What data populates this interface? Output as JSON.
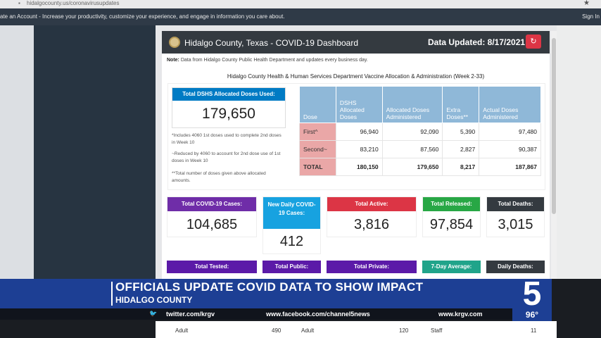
{
  "browser": {
    "url": "hidalgocounty.us/coronavirusupdates"
  },
  "navbar": {
    "message": "ate an Account - Increase your productivity, customize your experience, and engage in information you care about.",
    "signin": "Sign In"
  },
  "dashboard": {
    "title": "Hidalgo County, Texas - COVID-19 Dashboard",
    "updated": "Data Updated: 8/17/2021",
    "note_label": "Note:",
    "note_text": "Data from Hidalgo County Public Health Department and updates every business day.",
    "vaccine_title": "Hidalgo County Health & Human Services Department Vaccine Allocation & Administration (Week 2-33)",
    "dshs_label": "Total DSHS Allocated Doses Used:",
    "dshs_value": "179,650",
    "foot1": "*Includes 4060 1st doses used to complete 2nd doses in Week 10",
    "foot2": "~Reduced by 4060 to account for 2nd dose use of 1st doses in Week 10",
    "foot3": "**Total number of doses given above allocated amounts.",
    "table": {
      "headers": [
        "Dose",
        "DSHS Allocated Doses",
        "Allocated Doses Administered",
        "Extra Doses**",
        "Actual Doses Administered"
      ],
      "rows": [
        [
          "First^",
          "96,940",
          "92,090",
          "5,390",
          "97,480"
        ],
        [
          "Second~",
          "83,210",
          "87,560",
          "2,827",
          "90,387"
        ],
        [
          "TOTAL",
          "180,150",
          "179,650",
          "8,217",
          "187,867"
        ]
      ]
    },
    "stats": {
      "cases_label": "Total COVID-19 Cases:",
      "cases": "104,685",
      "daily_label": "New Daily COVID-19 Cases:",
      "daily": "412",
      "active_label": "Total Active:",
      "active": "3,816",
      "released_label": "Total Released:",
      "released": "97,854",
      "deaths_label": "Total Deaths:",
      "deaths": "3,015"
    },
    "lower": {
      "tested": "Total Tested:",
      "public": "Total Public:",
      "private": "Total Private:",
      "avg": "7-Day Average:",
      "daily_deaths": "Daily Deaths:"
    },
    "bottom": {
      "a1": "Adult",
      "v1": "490",
      "a2": "Adult",
      "v2": "120",
      "a3": "Staff",
      "v3": "11"
    }
  },
  "broadcast": {
    "headline": "OFFICIALS UPDATE COVID DATA TO SHOW IMPACT",
    "subhead": "HIDALGO COUNTY",
    "twitter": "twitter.com/krgv",
    "facebook": "www.facebook.com/channel5news",
    "web": "www.krgv.com",
    "logo": "5",
    "temp": "96°"
  },
  "colors": {
    "cases": "#6f2da8",
    "daily": "#17a2e0",
    "active": "#dc3545",
    "released": "#28a745",
    "deaths": "#343a40",
    "dshs": "#007bc4"
  }
}
